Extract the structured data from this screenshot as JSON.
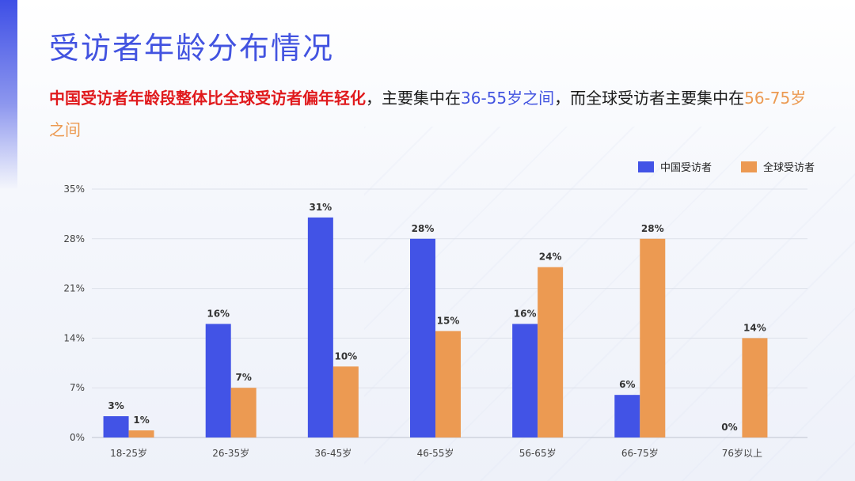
{
  "page": {
    "title": "受访者年龄分布情况",
    "subtitle": {
      "part1": "中国受访者年龄段整体比全球受访者偏年轻化",
      "part2": "，主要集中在",
      "part3": "36-55岁之间",
      "part4": "，而全球受访者主要集中在",
      "part5": "56-75岁之间"
    }
  },
  "colors": {
    "china": "#4253e6",
    "global": "#ec9a52",
    "title": "#4253e0",
    "highlight_red": "#e0191c"
  },
  "chart_data": {
    "type": "bar",
    "categories": [
      "18-25岁",
      "26-35岁",
      "36-45岁",
      "46-55岁",
      "56-65岁",
      "66-75岁",
      "76岁以上"
    ],
    "series": [
      {
        "name": "中国受访者",
        "values": [
          3,
          16,
          31,
          28,
          16,
          6,
          0
        ],
        "labels": [
          "3%",
          "16%",
          "31%",
          "28%",
          "16%",
          "6%",
          "0%"
        ]
      },
      {
        "name": "全球受访者",
        "values": [
          1,
          7,
          10,
          15,
          24,
          28,
          14
        ],
        "labels": [
          "1%",
          "7%",
          "10%",
          "15%",
          "24%",
          "28%",
          "14%"
        ]
      }
    ],
    "ylim": [
      0,
      35
    ],
    "yticks": [
      0,
      7,
      14,
      21,
      28,
      35
    ],
    "ytick_labels": [
      "0%",
      "7%",
      "14%",
      "21%",
      "28%",
      "35%"
    ],
    "grid": true,
    "legend_position": "top-right"
  }
}
